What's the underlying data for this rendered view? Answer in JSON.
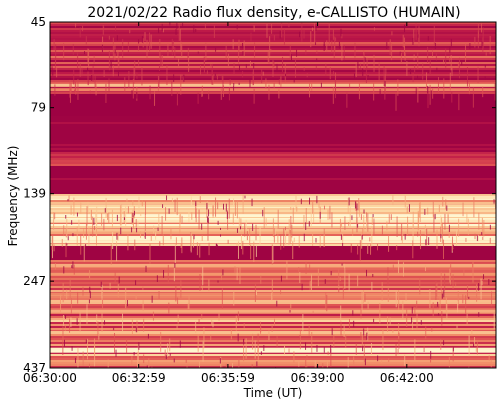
{
  "chart_data": {
    "type": "heatmap",
    "title": "2021/02/22  Radio flux density, e-CALLISTO (HUMAIN)",
    "xlabel": "Time (UT)",
    "ylabel": "Frequency (MHz)",
    "x_ticks": [
      "06:30:00",
      "06:32:59",
      "06:35:59",
      "06:39:00",
      "06:42:00"
    ],
    "y_ticks": [
      "45",
      "79",
      "139",
      "247",
      "437"
    ],
    "xlim": [
      "06:30:00",
      "06:45:00"
    ],
    "ylim": [
      437,
      45
    ],
    "yscale": "log",
    "colormap": "yellow-orange-red-crimson",
    "colors": {
      "low": "#9d0243",
      "mid": "#d94a48",
      "high": "#fbe2a4",
      "peak": "#fff6d0"
    },
    "bands": [
      {
        "from_mhz": 45,
        "to_mhz": 72,
        "level": 0.35,
        "note": "speckled moderate emission with a brighter line near 68 MHz"
      },
      {
        "from_mhz": 83,
        "to_mhz": 106,
        "level": 0.0,
        "note": "flat low-level band"
      },
      {
        "from_mhz": 106,
        "to_mhz": 116,
        "level": 0.45,
        "note": "striated emission"
      },
      {
        "from_mhz": 125,
        "to_mhz": 138,
        "level": 0.0,
        "note": "flat low-level band"
      },
      {
        "from_mhz": 140,
        "to_mhz": 195,
        "level": 0.85,
        "note": "bright striped emission"
      },
      {
        "from_mhz": 195,
        "to_mhz": 215,
        "level": 0.0,
        "note": "flat low-level band"
      },
      {
        "from_mhz": 215,
        "to_mhz": 437,
        "level": 0.6,
        "note": "striped emission with bright line near 385 MHz"
      }
    ]
  }
}
